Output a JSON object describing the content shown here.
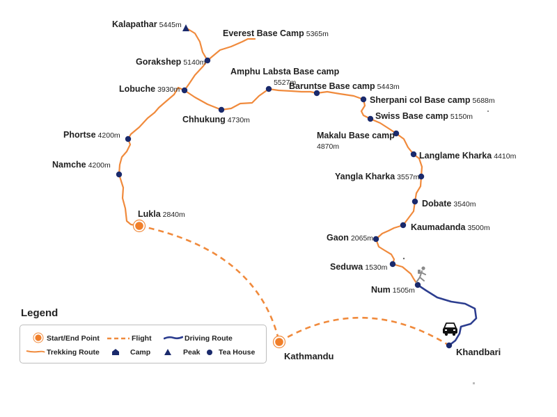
{
  "map": {
    "places": [
      {
        "id": "kalapathar",
        "name": "Kalapathar",
        "elev": "5445m",
        "kind": "peak"
      },
      {
        "id": "everest_bc",
        "name": "Everest Base Camp",
        "elev": "5365m",
        "kind": "label"
      },
      {
        "id": "gorakshep",
        "name": "Gorakshep",
        "elev": "5140m",
        "kind": "teahouse"
      },
      {
        "id": "amphu",
        "name": "Amphu Labsta Base camp",
        "elev": "5527m",
        "kind": "teahouse"
      },
      {
        "id": "lobuche",
        "name": "Lobuche",
        "elev": "3930m",
        "kind": "teahouse"
      },
      {
        "id": "baruntse",
        "name": "Baruntse Base camp",
        "elev": "5443m",
        "kind": "teahouse"
      },
      {
        "id": "sherpani",
        "name": "Sherpani col Base camp",
        "elev": "5688m",
        "kind": "teahouse"
      },
      {
        "id": "chhukung",
        "name": "Chhukung",
        "elev": "4730m",
        "kind": "teahouse"
      },
      {
        "id": "swiss",
        "name": "Swiss Base camp",
        "elev": "5150m",
        "kind": "teahouse"
      },
      {
        "id": "phortse",
        "name": "Phortse",
        "elev": "4200m",
        "kind": "teahouse"
      },
      {
        "id": "makalu",
        "name": "Makalu Base camp",
        "elev": "4870m",
        "kind": "teahouse"
      },
      {
        "id": "langlame",
        "name": "Langlame Kharka",
        "elev": "4410m",
        "kind": "teahouse"
      },
      {
        "id": "namche",
        "name": "Namche",
        "elev": "4200m",
        "kind": "teahouse"
      },
      {
        "id": "yangla",
        "name": "Yangla Kharka",
        "elev": "3557m",
        "kind": "teahouse"
      },
      {
        "id": "dobate",
        "name": "Dobate",
        "elev": "3540m",
        "kind": "teahouse"
      },
      {
        "id": "lukla",
        "name": "Lukla",
        "elev": "2840m",
        "kind": "startend"
      },
      {
        "id": "kaumadanda",
        "name": "Kaumadanda",
        "elev": "3500m",
        "kind": "teahouse"
      },
      {
        "id": "gaon",
        "name": "Gaon",
        "elev": "2065m",
        "kind": "teahouse"
      },
      {
        "id": "seduwa",
        "name": "Seduwa",
        "elev": "1530m",
        "kind": "teahouse"
      },
      {
        "id": "num",
        "name": "Num",
        "elev": "1505m",
        "kind": "teahouse"
      },
      {
        "id": "khandbari",
        "name": "Khandbari",
        "elev": "",
        "kind": "teahouse"
      },
      {
        "id": "kathmandu",
        "name": "Kathmandu",
        "elev": "",
        "kind": "startend"
      }
    ]
  },
  "legend": {
    "title": "Legend",
    "start_end": "Start/End Point",
    "flight": "Flight",
    "driving": "Driving Route",
    "trekking": "Trekking Route",
    "camp": "Camp",
    "peak": "Peak",
    "teahouse": "Tea House"
  },
  "colors": {
    "trek": "#f08a3c",
    "teahouse": "#1a2a6c",
    "drive": "#2c3d8f",
    "start_fill": "#f07f2a",
    "text": "#1f1f1f"
  }
}
